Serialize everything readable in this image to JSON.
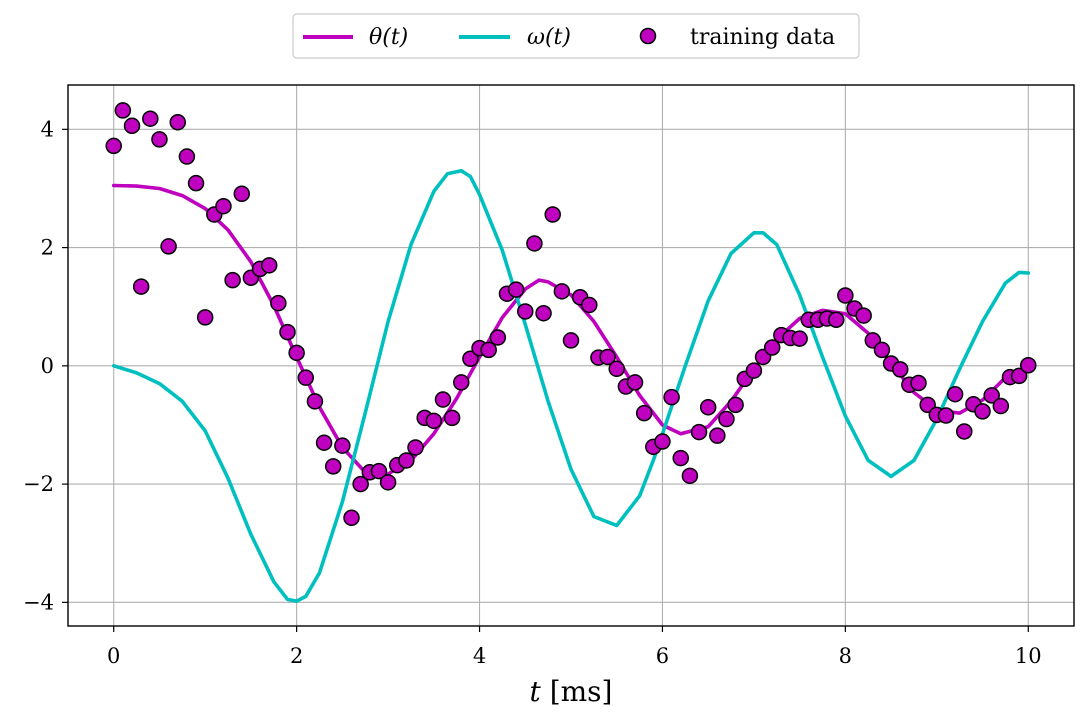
{
  "chart_data": {
    "type": "line",
    "title": "",
    "xlabel": "t [ms]",
    "xlabel_parts": {
      "var": "t",
      "unit": " [ms]"
    },
    "ylabel": "",
    "xlim": [
      -0.5,
      10.5
    ],
    "ylim": [
      -4.4,
      4.75
    ],
    "xticks": [
      0,
      2,
      4,
      6,
      8,
      10
    ],
    "xtick_labels": [
      "0",
      "2",
      "4",
      "6",
      "8",
      "10"
    ],
    "yticks": [
      -4,
      -2,
      0,
      2,
      4
    ],
    "ytick_labels": [
      "−4",
      "−2",
      "0",
      "2",
      "4"
    ],
    "grid": true,
    "legend": {
      "placement": "top-center, outside plot",
      "entries": [
        {
          "label": "θ(t)",
          "kind": "line",
          "color": "#bf00bf"
        },
        {
          "label": "ω(t)",
          "kind": "line",
          "color": "#00bfbf"
        },
        {
          "label": "training data",
          "kind": "marker",
          "color": "#bf00bf",
          "edge": "#000000"
        }
      ]
    },
    "series": [
      {
        "name": "θ(t)",
        "kind": "line",
        "color": "#bf00bf",
        "x": [
          0,
          0.25,
          0.5,
          0.75,
          1,
          1.25,
          1.5,
          1.75,
          2,
          2.25,
          2.5,
          2.75,
          3,
          3.25,
          3.5,
          3.75,
          4,
          4.25,
          4.5,
          4.65,
          4.75,
          5,
          5.25,
          5.5,
          5.75,
          6,
          6.2,
          6.5,
          6.75,
          7,
          7.25,
          7.5,
          7.75,
          8,
          8.25,
          8.5,
          8.75,
          9,
          9.25,
          9.5,
          9.75,
          10
        ],
        "y": [
          3.05,
          3.04,
          3.0,
          2.88,
          2.66,
          2.3,
          1.76,
          1.02,
          0.15,
          -0.7,
          -1.38,
          -1.8,
          -1.83,
          -1.6,
          -1.15,
          -0.55,
          0.15,
          0.82,
          1.3,
          1.45,
          1.42,
          1.2,
          0.75,
          0.15,
          -0.5,
          -1.0,
          -1.15,
          -1.03,
          -0.6,
          -0.05,
          0.45,
          0.8,
          0.94,
          0.88,
          0.55,
          0.05,
          -0.45,
          -0.75,
          -0.8,
          -0.58,
          -0.2,
          0.0
        ]
      },
      {
        "name": "ω(t)",
        "kind": "line",
        "color": "#00bfbf",
        "x": [
          0,
          0.25,
          0.5,
          0.75,
          1,
          1.25,
          1.5,
          1.75,
          1.9,
          2,
          2.1,
          2.25,
          2.5,
          2.75,
          3,
          3.25,
          3.5,
          3.65,
          3.8,
          3.9,
          4,
          4.25,
          4.5,
          4.75,
          5,
          5.25,
          5.5,
          5.75,
          5.9,
          6,
          6.25,
          6.5,
          6.75,
          7,
          7.1,
          7.25,
          7.5,
          7.75,
          8,
          8.25,
          8.5,
          8.75,
          9,
          9.25,
          9.5,
          9.75,
          9.9,
          10
        ],
        "y": [
          0,
          -0.12,
          -0.3,
          -0.6,
          -1.1,
          -1.9,
          -2.85,
          -3.65,
          -3.95,
          -3.98,
          -3.9,
          -3.5,
          -2.3,
          -0.8,
          0.75,
          2.05,
          2.95,
          3.25,
          3.3,
          3.2,
          2.9,
          1.95,
          0.7,
          -0.6,
          -1.75,
          -2.55,
          -2.7,
          -2.2,
          -1.6,
          -1.15,
          0.0,
          1.1,
          1.9,
          2.25,
          2.25,
          2.05,
          1.2,
          0.15,
          -0.85,
          -1.6,
          -1.87,
          -1.6,
          -0.9,
          -0.05,
          0.75,
          1.4,
          1.58,
          1.57
        ]
      },
      {
        "name": "training data",
        "kind": "scatter",
        "color": "#bf00bf",
        "edge": "#000000",
        "x": [
          0,
          0.1,
          0.2,
          0.3,
          0.4,
          0.5,
          0.6,
          0.7,
          0.8,
          0.9,
          1.0,
          1.1,
          1.2,
          1.3,
          1.4,
          1.5,
          1.6,
          1.7,
          1.8,
          1.9,
          2.0,
          2.1,
          2.2,
          2.3,
          2.4,
          2.5,
          2.6,
          2.7,
          2.8,
          2.9,
          3.0,
          3.1,
          3.2,
          3.3,
          3.4,
          3.5,
          3.6,
          3.7,
          3.8,
          3.9,
          4.0,
          4.1,
          4.2,
          4.3,
          4.4,
          4.5,
          4.6,
          4.7,
          4.8,
          4.9,
          5.0,
          5.1,
          5.2,
          5.3,
          5.4,
          5.5,
          5.6,
          5.7,
          5.8,
          5.9,
          6.0,
          6.1,
          6.2,
          6.3,
          6.4,
          6.5,
          6.6,
          6.7,
          6.8,
          6.9,
          7.0,
          7.1,
          7.2,
          7.3,
          7.4,
          7.5,
          7.6,
          7.7,
          7.8,
          7.9,
          8.0,
          8.1,
          8.2,
          8.3,
          8.4,
          8.5,
          8.6,
          8.7,
          8.8,
          8.9,
          9.0,
          9.1,
          9.2,
          9.3,
          9.4,
          9.5,
          9.6,
          9.7,
          9.8,
          9.9,
          10.0
        ],
        "y": [
          3.72,
          4.32,
          4.06,
          1.34,
          4.18,
          3.83,
          2.02,
          4.12,
          3.54,
          3.09,
          0.82,
          2.56,
          2.7,
          1.45,
          2.91,
          1.49,
          1.64,
          1.7,
          1.06,
          0.57,
          0.22,
          -0.2,
          -0.6,
          -1.3,
          -1.7,
          -1.35,
          -2.57,
          -2.0,
          -1.8,
          -1.78,
          -1.97,
          -1.68,
          -1.6,
          -1.38,
          -0.88,
          -0.93,
          -0.57,
          -0.88,
          -0.28,
          0.12,
          0.3,
          0.27,
          0.48,
          1.22,
          1.29,
          0.92,
          2.07,
          0.89,
          2.56,
          1.26,
          0.43,
          1.16,
          1.03,
          0.14,
          0.15,
          -0.05,
          -0.35,
          -0.28,
          -0.8,
          -1.37,
          -1.28,
          -0.53,
          -1.56,
          -1.86,
          -1.12,
          -0.7,
          -1.18,
          -0.9,
          -0.66,
          -0.22,
          -0.08,
          0.15,
          0.31,
          0.52,
          0.47,
          0.46,
          0.78,
          0.78,
          0.8,
          0.78,
          1.19,
          0.97,
          0.85,
          0.43,
          0.27,
          0.04,
          -0.06,
          -0.32,
          -0.29,
          -0.66,
          -0.83,
          -0.84,
          -0.48,
          -1.11,
          -0.65,
          -0.77,
          -0.5,
          -0.68,
          -0.19,
          -0.17,
          0.01
        ]
      }
    ]
  }
}
